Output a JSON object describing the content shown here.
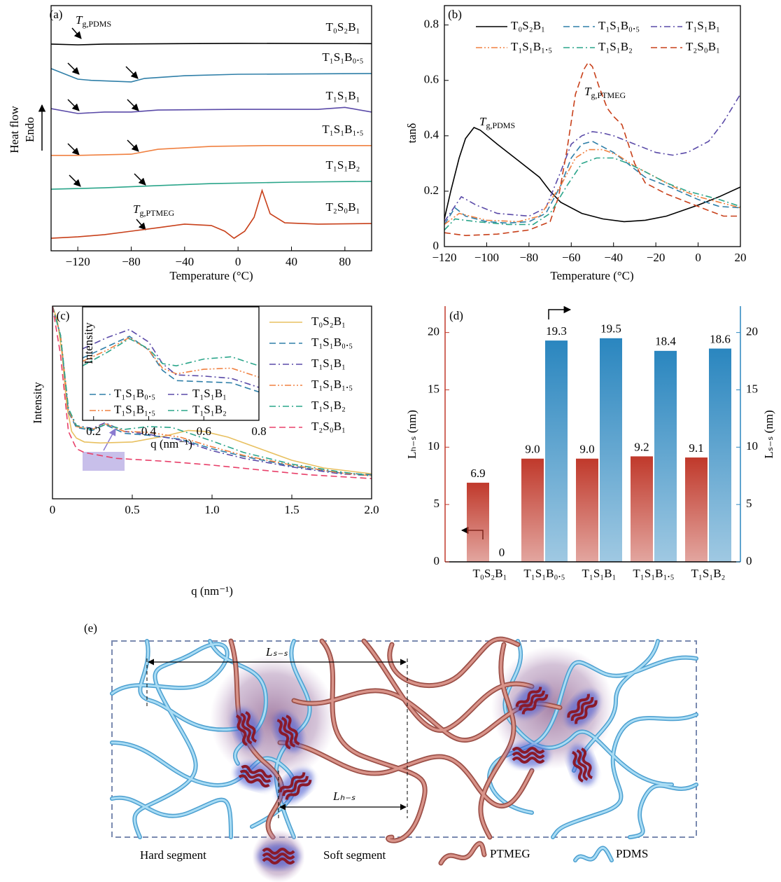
{
  "chart_data": [
    {
      "type": "line",
      "label": "(a)",
      "x_label": "Temperature (°C)",
      "y_label": "Heat flow",
      "y_label_2": "Endo",
      "xlim": [
        -140,
        100
      ],
      "ylim": [
        0,
        10
      ],
      "xticks": [
        {
          "value": -120,
          "label": "−120"
        },
        {
          "value": -80,
          "label": "−80"
        },
        {
          "value": -40,
          "label": "−40"
        },
        0,
        40,
        80
      ],
      "annotations": [
        {
          "text": "Tg,PDMS",
          "color": "#000000"
        },
        {
          "text": "Tg,PTMEG",
          "color": "#e0603a"
        }
      ],
      "series": [
        {
          "name": "T₀S₂B₁",
          "color": "#000000",
          "dash": "solid",
          "x": [
            -140,
            -120,
            -100,
            0,
            100
          ],
          "values": [
            8.43,
            8.4,
            8.43,
            8.46,
            8.45
          ]
        },
        {
          "name": "T₁S₁B₀.₅",
          "color": "#2f7fa8",
          "dash": "solid",
          "x": [
            -140,
            -120,
            -110,
            -80,
            -70,
            -40,
            0,
            100
          ],
          "values": [
            7.43,
            7.0,
            6.95,
            6.89,
            7.03,
            7.14,
            7.2,
            7.23
          ]
        },
        {
          "name": "T₁S₁B₁",
          "color": "#5a4aa8",
          "dash": "solid",
          "x": [
            -140,
            -120,
            -100,
            -80,
            -60,
            0,
            60,
            80,
            100
          ],
          "values": [
            5.8,
            5.6,
            5.66,
            5.66,
            5.74,
            5.77,
            5.77,
            5.85,
            5.66
          ]
        },
        {
          "name": "T₁S₁B₁.₅",
          "color": "#f08040",
          "dash": "solid",
          "x": [
            -140,
            -120,
            -80,
            -60,
            -20,
            20,
            100
          ],
          "values": [
            3.89,
            3.89,
            3.94,
            4.14,
            4.26,
            4.29,
            4.29
          ]
        },
        {
          "name": "T₁S₁B₂",
          "color": "#2aa58a",
          "dash": "solid",
          "x": [
            -140,
            -100,
            -60,
            -20,
            40,
            100
          ],
          "values": [
            2.51,
            2.57,
            2.66,
            2.74,
            2.8,
            2.83
          ]
        },
        {
          "name": "T₂S₀B₁",
          "color": "#c8401a",
          "dash": "solid",
          "x": [
            -140,
            -120,
            -100,
            -80,
            -60,
            -40,
            -20,
            -10,
            -3,
            5,
            12,
            18,
            24,
            35,
            60,
            100
          ],
          "values": [
            0.51,
            0.57,
            0.66,
            0.8,
            0.94,
            1.09,
            1.03,
            0.8,
            0.51,
            0.8,
            1.37,
            2.46,
            1.51,
            1.14,
            1.09,
            1.11
          ]
        }
      ]
    },
    {
      "type": "line",
      "label": "(b)",
      "x_label": "Temperature (°C)",
      "y_label": "tanδ",
      "xlim": [
        -120,
        20
      ],
      "ylim": [
        0,
        0.87
      ],
      "xticks": [
        {
          "value": -120,
          "label": "−120"
        },
        {
          "value": -100,
          "label": "−100"
        },
        {
          "value": -80,
          "label": "−80"
        },
        {
          "value": -60,
          "label": "−60"
        },
        {
          "value": -40,
          "label": "−40"
        },
        {
          "value": -20,
          "label": "−20"
        },
        0,
        20
      ],
      "yticks": [
        0,
        0.2,
        0.4,
        0.6,
        0.8
      ],
      "annotations": [
        {
          "text": "Tg,PDMS",
          "color": "#000000"
        },
        {
          "text": "Tg,PTMEG",
          "color": "#e0603a"
        }
      ],
      "series": [
        {
          "name": "T₀S₂B₁",
          "color": "#000000",
          "dash": "solid",
          "x": [
            -120,
            -117,
            -113,
            -110,
            -106,
            -103,
            -95,
            -85,
            -75,
            -70,
            -65,
            -55,
            -45,
            -35,
            -25,
            -15,
            0,
            10,
            20
          ],
          "values": [
            0.1,
            0.2,
            0.32,
            0.39,
            0.43,
            0.42,
            0.37,
            0.31,
            0.25,
            0.2,
            0.16,
            0.12,
            0.1,
            0.09,
            0.095,
            0.11,
            0.15,
            0.18,
            0.215
          ]
        },
        {
          "name": "T₁S₁B₀.₅",
          "color": "#2f7fa8",
          "dash": "dashed",
          "x": [
            -120,
            -115,
            -110,
            -100,
            -90,
            -80,
            -72,
            -65,
            -60,
            -55,
            -50,
            -45,
            -40,
            -35,
            -25,
            -15,
            0,
            10,
            20
          ],
          "values": [
            0.08,
            0.14,
            0.11,
            0.09,
            0.085,
            0.09,
            0.12,
            0.22,
            0.32,
            0.37,
            0.38,
            0.36,
            0.34,
            0.31,
            0.25,
            0.22,
            0.17,
            0.145,
            0.14
          ]
        },
        {
          "name": "T₁S₁B₁",
          "color": "#5a4aa8",
          "dash": "dashdot",
          "x": [
            -120,
            -112,
            -105,
            -95,
            -80,
            -72,
            -65,
            -60,
            -55,
            -50,
            -45,
            -40,
            -30,
            -20,
            -12,
            -5,
            5,
            12,
            20
          ],
          "values": [
            0.09,
            0.18,
            0.15,
            0.12,
            0.11,
            0.14,
            0.27,
            0.37,
            0.4,
            0.415,
            0.41,
            0.4,
            0.37,
            0.34,
            0.33,
            0.34,
            0.38,
            0.45,
            0.55
          ]
        },
        {
          "name": "T₁S₁B₁.₅",
          "color": "#f08040",
          "dash": "dashdotdot",
          "x": [
            -120,
            -113,
            -100,
            -85,
            -75,
            -65,
            -58,
            -52,
            -45,
            -38,
            -30,
            -20,
            -10,
            0,
            10,
            20
          ],
          "values": [
            0.08,
            0.12,
            0.095,
            0.09,
            0.11,
            0.22,
            0.32,
            0.35,
            0.35,
            0.33,
            0.29,
            0.25,
            0.21,
            0.18,
            0.16,
            0.14
          ]
        },
        {
          "name": "T₁S₁B₂",
          "color": "#2aa58a",
          "dash": "dashdot",
          "x": [
            -120,
            -115,
            -105,
            -90,
            -78,
            -70,
            -62,
            -55,
            -48,
            -40,
            -33,
            -25,
            -15,
            -5,
            10,
            20
          ],
          "values": [
            0.06,
            0.1,
            0.09,
            0.08,
            0.08,
            0.12,
            0.22,
            0.3,
            0.32,
            0.32,
            0.3,
            0.27,
            0.23,
            0.2,
            0.17,
            0.145
          ]
        },
        {
          "name": "T₂S₀B₁",
          "color": "#c8401a",
          "dash": "dashed",
          "x": [
            -120,
            -110,
            -95,
            -80,
            -70,
            -66,
            -62,
            -58,
            -54,
            -52,
            -50,
            -47,
            -43,
            -40,
            -36,
            -30,
            -25,
            -15,
            -5,
            5,
            12,
            20
          ],
          "values": [
            0.05,
            0.04,
            0.045,
            0.06,
            0.09,
            0.18,
            0.35,
            0.55,
            0.64,
            0.665,
            0.65,
            0.58,
            0.5,
            0.47,
            0.44,
            0.3,
            0.23,
            0.19,
            0.16,
            0.13,
            0.11,
            0.11
          ]
        }
      ]
    },
    {
      "type": "line",
      "label": "(c)",
      "x_label": "q (nm⁻¹)",
      "y_label": "Intensity",
      "xlim": [
        0,
        2
      ],
      "ylim": [
        0,
        10
      ],
      "xticks": [
        0,
        0.5,
        {
          "value": 1,
          "label": "1.0"
        },
        1.5,
        {
          "value": 2,
          "label": "2.0"
        }
      ],
      "legend": "right",
      "series": [
        {
          "name": "T₀S₂B₁",
          "color": "#e8c060",
          "dash": "solid",
          "x": [
            0,
            0.03,
            0.06,
            0.09,
            0.12,
            0.15,
            0.2,
            0.3,
            0.5,
            0.7,
            0.85,
            0.95,
            1.1,
            1.3,
            1.5,
            1.7,
            2.0
          ],
          "values": [
            10,
            9.3,
            7.5,
            4.8,
            3.5,
            3.15,
            2.95,
            2.9,
            2.95,
            3.25,
            3.55,
            3.5,
            3.2,
            2.6,
            2.0,
            1.6,
            1.3
          ]
        },
        {
          "name": "T₁S₁B₀.₅",
          "color": "#2f7fa8",
          "dash": "dashed",
          "x": [
            0,
            0.05,
            0.1,
            0.15,
            0.25,
            0.33,
            0.45,
            0.6,
            0.8,
            1.0,
            1.2,
            1.5,
            1.8,
            2.0
          ],
          "values": [
            10,
            8.5,
            4.5,
            3.7,
            3.55,
            3.85,
            3.4,
            3.3,
            3.1,
            2.6,
            2.2,
            1.7,
            1.35,
            1.25
          ]
        },
        {
          "name": "T₁S₁B₁",
          "color": "#5a4aa8",
          "dash": "dashdot",
          "x": [
            0,
            0.05,
            0.1,
            0.15,
            0.25,
            0.33,
            0.45,
            0.6,
            0.8,
            1.0,
            1.2,
            1.5,
            1.8,
            2.0
          ],
          "values": [
            10,
            8.5,
            4.6,
            3.8,
            3.65,
            3.95,
            3.5,
            3.35,
            3.05,
            2.5,
            2.1,
            1.65,
            1.3,
            1.2
          ]
        },
        {
          "name": "T₁S₁B₁.₅",
          "color": "#f08040",
          "dash": "dashdotdot",
          "x": [
            0,
            0.05,
            0.1,
            0.15,
            0.25,
            0.33,
            0.45,
            0.6,
            0.8,
            1.0,
            1.2,
            1.5,
            1.8,
            2.0
          ],
          "values": [
            10,
            8.5,
            4.6,
            3.75,
            3.6,
            3.9,
            3.5,
            3.45,
            3.2,
            2.7,
            2.25,
            1.75,
            1.35,
            1.2
          ]
        },
        {
          "name": "T₁S₁B₂",
          "color": "#2aa58a",
          "dash": "dashdot",
          "x": [
            0,
            0.05,
            0.1,
            0.15,
            0.25,
            0.33,
            0.45,
            0.6,
            0.75,
            1.0,
            1.2,
            1.5,
            1.8,
            2.0
          ],
          "values": [
            10,
            8.5,
            4.7,
            3.8,
            3.6,
            3.85,
            3.6,
            3.75,
            3.7,
            3.0,
            2.4,
            1.8,
            1.4,
            1.2
          ]
        },
        {
          "name": "T₂S₀B₁",
          "color": "#e8406a",
          "dash": "dashed",
          "x": [
            0,
            0.05,
            0.1,
            0.15,
            0.2,
            0.4,
            0.7,
            1.0,
            1.3,
            1.6,
            2.0
          ],
          "values": [
            10,
            7.5,
            3.5,
            2.6,
            2.4,
            2.1,
            1.95,
            1.75,
            1.5,
            1.25,
            1.05
          ]
        }
      ]
    },
    {
      "type": "line",
      "x_label": "q (nm⁻¹)",
      "y_label": "Intensity",
      "xlim": [
        0.16,
        0.8
      ],
      "ylim": [
        0,
        10
      ],
      "xticks": [
        0.2,
        0.4,
        0.6,
        0.8
      ],
      "legend": "lower left",
      "series": [
        {
          "name": "T₁S₁B₀.₅",
          "color": "#2f7fa8",
          "dash": "dashed",
          "x": [
            0.16,
            0.25,
            0.33,
            0.4,
            0.45,
            0.5,
            0.6,
            0.7,
            0.8
          ],
          "values": [
            5.5,
            6.5,
            7.4,
            6.2,
            4.4,
            3.5,
            3.4,
            3.3,
            2.5
          ]
        },
        {
          "name": "T₁S₁B₁.₅",
          "color": "#f08040",
          "dash": "dashdotdot",
          "x": [
            0.16,
            0.25,
            0.33,
            0.4,
            0.45,
            0.5,
            0.6,
            0.7,
            0.8
          ],
          "values": [
            5.2,
            6.2,
            7.3,
            6.2,
            4.6,
            4.1,
            4.5,
            4.6,
            3.8
          ]
        },
        {
          "name": "T₁S₁B₁",
          "color": "#5a4aa8",
          "dash": "dashdot",
          "x": [
            0.16,
            0.25,
            0.33,
            0.4,
            0.45,
            0.5,
            0.6,
            0.7,
            0.8
          ],
          "values": [
            6.3,
            7.3,
            8.0,
            6.9,
            5.0,
            4.0,
            3.9,
            3.7,
            2.9
          ]
        },
        {
          "name": "T₁S₁B₂",
          "color": "#2aa58a",
          "dash": "dashdot",
          "x": [
            0.16,
            0.25,
            0.33,
            0.4,
            0.45,
            0.5,
            0.6,
            0.7,
            0.8
          ],
          "values": [
            4.8,
            6.0,
            7.2,
            6.3,
            5.0,
            4.8,
            5.4,
            5.6,
            4.8
          ]
        }
      ]
    },
    {
      "type": "bar",
      "label": "(d)",
      "y_label": "Lₕ₋ₛ (nm)",
      "y2_label": "Lₛ₋ₛ (nm)",
      "categories": [
        "T₀S₂B₁",
        "T₁S₁B₀.₅",
        "T₁S₁B₁",
        "T₁S₁B₁.₅",
        "T₁S₁B₂"
      ],
      "ylim": [
        0,
        22.3
      ],
      "yticks": [
        0,
        5,
        10,
        15,
        20
      ],
      "y2lim": [
        0,
        22.3
      ],
      "y2ticks": [
        0,
        5,
        10,
        15,
        20
      ],
      "series": [
        {
          "color": "#c0392b",
          "values": [
            6.9,
            9.0,
            9.0,
            9.2,
            9.1
          ],
          "value_labels": [
            "6.9",
            "9.0",
            "9.0",
            "9.2",
            "9.1"
          ]
        },
        {
          "color": "#2a86bf",
          "axis": "y2",
          "values": [
            0,
            19.3,
            19.5,
            18.4,
            18.6
          ]
        }
      ]
    }
  ],
  "figure_e": {
    "label": "(e)",
    "dimensions": [
      "Lₛ₋ₛ",
      "Lₕ₋ₛ"
    ],
    "legend": [
      "Hard segment",
      "Soft segment",
      "PTMEG",
      "PDMS"
    ]
  }
}
